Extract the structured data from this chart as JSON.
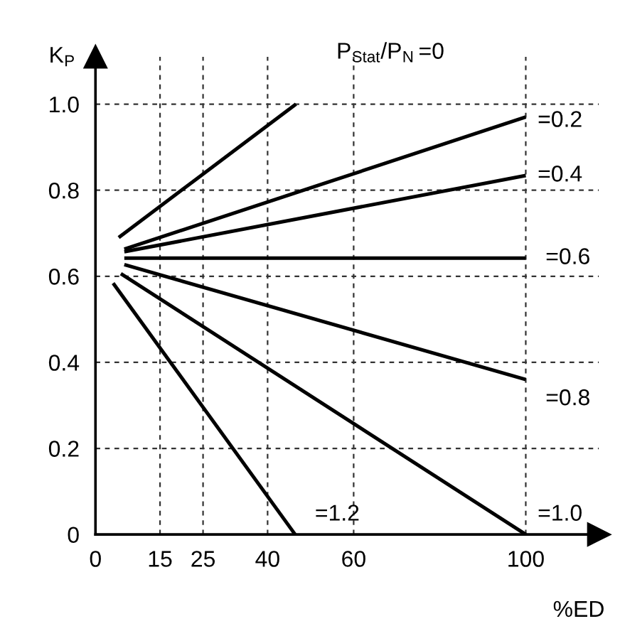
{
  "chart_data": {
    "type": "line",
    "xlabel": "%ED",
    "ylabel": "K$_{P}$",
    "annotations": [
      "P$_{Stat}$/P$_{N}$"
    ],
    "series": [
      {
        "name": "=0",
        "color": "#000000",
        "x": [
          5.4,
          46.6
        ],
        "values": [
          0.69,
          1.0
        ]
      },
      {
        "name": "=0.2",
        "color": "#000000",
        "x": [
          6.7,
          100
        ],
        "values": [
          0.663,
          0.97
        ]
      },
      {
        "name": "=0.4",
        "color": "#000000",
        "x": [
          6.7,
          100
        ],
        "values": [
          0.657,
          0.834
        ]
      },
      {
        "name": "=0.6",
        "color": "#000000",
        "x": [
          6.7,
          100
        ],
        "values": [
          0.642,
          0.642
        ]
      },
      {
        "name": "=0.8",
        "color": "#000000",
        "x": [
          6.7,
          100
        ],
        "values": [
          0.627,
          0.36
        ]
      },
      {
        "name": "=1.0",
        "color": "#000000",
        "x": [
          5.9,
          100
        ],
        "values": [
          0.606,
          0.0
        ]
      },
      {
        "name": "=1.2",
        "color": "#000000",
        "x": [
          4.1,
          46.4
        ],
        "values": [
          0.584,
          0.0
        ]
      }
    ],
    "xlim": [
      0,
      117
    ],
    "ylim": [
      0,
      1.11
    ],
    "xticks": [
      0,
      15,
      25,
      40,
      60,
      100
    ],
    "yticks": [
      0,
      {
        "value": 0.2,
        "label": "0.2"
      },
      {
        "value": 0.4,
        "label": "0.4"
      },
      {
        "value": 0.6,
        "label": "0.6"
      },
      {
        "value": 0.8,
        "label": "0.8"
      },
      {
        "value": 1.0,
        "label": "1.0"
      }
    ],
    "grid": true,
    "legend": false,
    "marker": "none",
    "line_style": "solid"
  }
}
